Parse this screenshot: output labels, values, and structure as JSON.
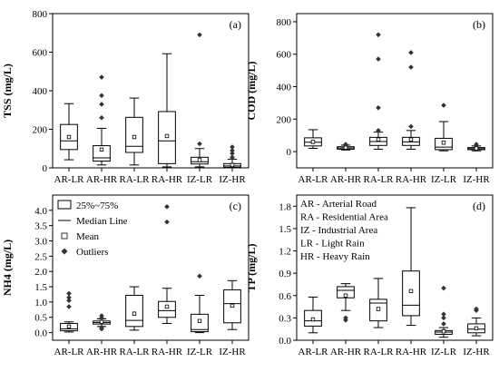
{
  "chart_data": [
    {
      "type": "box",
      "panel_label": "(a)",
      "ylabel": "TSS (mg/L)",
      "ylim": [
        0,
        800
      ],
      "yticks": [
        0,
        200,
        400,
        600,
        800
      ],
      "categories": [
        "AR-LR",
        "AR-HR",
        "RA-LR",
        "RA-HR",
        "IZ-LR",
        "IZ-HR"
      ],
      "boxes": [
        {
          "whisker_low": 42,
          "q1": 95,
          "median": 140,
          "q3": 225,
          "whisker_high": 333,
          "mean": 160,
          "outliers": []
        },
        {
          "whisker_low": 15,
          "q1": 35,
          "median": 52,
          "q3": 115,
          "whisker_high": 205,
          "mean": 95,
          "outliers": [
            260,
            330,
            375,
            470
          ]
        },
        {
          "whisker_low": 15,
          "q1": 80,
          "median": 112,
          "q3": 262,
          "whisker_high": 362,
          "mean": 160,
          "outliers": []
        },
        {
          "whisker_low": 5,
          "q1": 22,
          "median": 140,
          "q3": 292,
          "whisker_high": 592,
          "mean": 165,
          "outliers": []
        },
        {
          "whisker_low": 5,
          "q1": 20,
          "median": 32,
          "q3": 55,
          "whisker_high": 100,
          "mean": 40,
          "outliers": [
            125,
            690
          ]
        },
        {
          "whisker_low": 0,
          "q1": 3,
          "median": 10,
          "q3": 22,
          "whisker_high": 45,
          "mean": 15,
          "outliers": [
            55,
            75,
            90,
            108
          ]
        }
      ]
    },
    {
      "type": "box",
      "panel_label": "(b)",
      "ylabel": "COD (mg/L)",
      "ylim": [
        -100,
        850
      ],
      "yticks": [
        0,
        200,
        400,
        600,
        800
      ],
      "categories": [
        "AR-LR",
        "AR-HR",
        "RA-LR",
        "RA-HR",
        "IZ-LR",
        "IZ-HR"
      ],
      "boxes": [
        {
          "whisker_low": 20,
          "q1": 35,
          "median": 58,
          "q3": 85,
          "whisker_high": 135,
          "mean": 60,
          "outliers": []
        },
        {
          "whisker_low": 10,
          "q1": 15,
          "median": 22,
          "q3": 30,
          "whisker_high": 40,
          "mean": 25,
          "outliers": [
            45
          ]
        },
        {
          "whisker_low": 15,
          "q1": 38,
          "median": 62,
          "q3": 88,
          "whisker_high": 120,
          "mean": 75,
          "outliers": [
            130,
            270,
            570,
            720
          ]
        },
        {
          "whisker_low": 15,
          "q1": 38,
          "median": 60,
          "q3": 88,
          "whisker_high": 130,
          "mean": 75,
          "outliers": [
            155,
            520,
            610
          ]
        },
        {
          "whisker_low": 5,
          "q1": 12,
          "median": 28,
          "q3": 82,
          "whisker_high": 185,
          "mean": 55,
          "outliers": [
            285
          ]
        },
        {
          "whisker_low": 5,
          "q1": 12,
          "median": 18,
          "q3": 25,
          "whisker_high": 35,
          "mean": 20,
          "outliers": [
            45
          ]
        }
      ]
    },
    {
      "type": "box",
      "panel_label": "(c)",
      "ylabel": "NH4 (mg/L)",
      "ylim": [
        -0.25,
        4.5
      ],
      "yticks": [
        0.0,
        0.5,
        1.0,
        1.5,
        2.0,
        2.5,
        3.0,
        3.5,
        4.0
      ],
      "categories": [
        "AR-LR",
        "AR-HR",
        "RA-LR",
        "RA-HR",
        "IZ-LR",
        "IZ-HR"
      ],
      "boxes": [
        {
          "whisker_low": 0.02,
          "q1": 0.06,
          "median": 0.12,
          "q3": 0.3,
          "whisker_high": 0.35,
          "mean": 0.2,
          "outliers": [
            0.85,
            1.05,
            1.15,
            1.28
          ]
        },
        {
          "whisker_low": 0.2,
          "q1": 0.28,
          "median": 0.33,
          "q3": 0.38,
          "whisker_high": 0.45,
          "mean": 0.35,
          "outliers": [
            0.12,
            0.18,
            0.48,
            0.55
          ]
        },
        {
          "whisker_low": 0.08,
          "q1": 0.2,
          "median": 0.4,
          "q3": 1.22,
          "whisker_high": 1.5,
          "mean": 0.62,
          "outliers": []
        },
        {
          "whisker_low": 0.3,
          "q1": 0.5,
          "median": 0.72,
          "q3": 1.02,
          "whisker_high": 1.45,
          "mean": 0.85,
          "outliers": [
            3.62,
            4.12
          ]
        },
        {
          "whisker_low": 0.0,
          "q1": 0.03,
          "median": 0.1,
          "q3": 0.6,
          "whisker_high": 1.22,
          "mean": 0.38,
          "outliers": [
            1.85
          ]
        },
        {
          "whisker_low": 0.1,
          "q1": 0.32,
          "median": 0.95,
          "q3": 1.4,
          "whisker_high": 1.7,
          "mean": 0.88,
          "outliers": []
        }
      ]
    },
    {
      "type": "box",
      "panel_label": "(d)",
      "ylabel": "TP (mg/L)",
      "ylim": [
        0,
        1.95
      ],
      "yticks": [
        0.0,
        0.3,
        0.6,
        0.9,
        1.2,
        1.5,
        1.8
      ],
      "categories": [
        "AR-LR",
        "AR-HR",
        "RA-LR",
        "RA-HR",
        "IZ-LR",
        "IZ-HR"
      ],
      "boxes": [
        {
          "whisker_low": 0.1,
          "q1": 0.19,
          "median": 0.26,
          "q3": 0.4,
          "whisker_high": 0.58,
          "mean": 0.28,
          "outliers": []
        },
        {
          "whisker_low": 0.4,
          "q1": 0.57,
          "median": 0.67,
          "q3": 0.72,
          "whisker_high": 0.76,
          "mean": 0.6,
          "outliers": [
            0.27,
            0.3
          ]
        },
        {
          "whisker_low": 0.17,
          "q1": 0.26,
          "median": 0.5,
          "q3": 0.55,
          "whisker_high": 0.83,
          "mean": 0.42,
          "outliers": []
        },
        {
          "whisker_low": 0.2,
          "q1": 0.33,
          "median": 0.47,
          "q3": 0.93,
          "whisker_high": 1.78,
          "mean": 0.66,
          "outliers": []
        },
        {
          "whisker_low": 0.04,
          "q1": 0.08,
          "median": 0.11,
          "q3": 0.13,
          "whisker_high": 0.17,
          "mean": 0.12,
          "outliers": [
            0.22,
            0.3,
            0.35,
            0.7
          ]
        },
        {
          "whisker_low": 0.06,
          "q1": 0.1,
          "median": 0.15,
          "q3": 0.22,
          "whisker_high": 0.3,
          "mean": 0.16,
          "outliers": [
            0.4,
            0.42
          ]
        }
      ]
    }
  ],
  "legend_symbols": {
    "box": "25%~75%",
    "median": "Median Line",
    "mean": "Mean",
    "outliers": "Outliers"
  },
  "legend_abbreviations": [
    "AR - Arterial Road",
    "RA - Residential Area",
    "IZ - Industrial Area",
    "LR - Light Rain",
    "HR - Heavy Rain"
  ]
}
